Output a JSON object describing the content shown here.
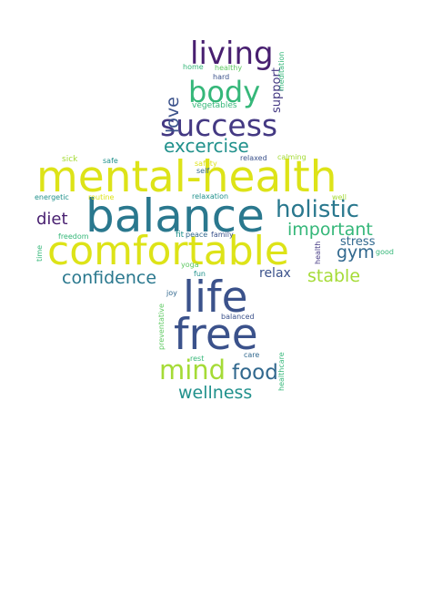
{
  "palette": {
    "yellow": "#dde318",
    "lime": "#a5db36",
    "green": "#5ec962",
    "seagreen": "#35b779",
    "teal": "#21918c",
    "bluegreen": "#2a788e",
    "blue": "#31688e",
    "indigo": "#3b528b",
    "purple": "#443983",
    "darkpurple": "#481f70",
    "deep": "#440154"
  },
  "words": [
    {
      "text": "mental-health",
      "color": "yellow"
    },
    {
      "text": "balance",
      "color": "bluegreen"
    },
    {
      "text": "comfortable",
      "color": "yellow"
    },
    {
      "text": "life",
      "color": "indigo"
    },
    {
      "text": "free",
      "color": "indigo"
    },
    {
      "text": "success",
      "color": "purple"
    },
    {
      "text": "living",
      "color": "darkpurple"
    },
    {
      "text": "body",
      "color": "seagreen"
    },
    {
      "text": "holistic",
      "color": "bluegreen"
    },
    {
      "text": "mind",
      "color": "lime"
    },
    {
      "text": "food",
      "color": "blue"
    },
    {
      "text": "wellness",
      "color": "teal"
    },
    {
      "text": "excercise",
      "color": "teal"
    },
    {
      "text": "confidence",
      "color": "bluegreen"
    },
    {
      "text": "important",
      "color": "seagreen"
    },
    {
      "text": "stable",
      "color": "lime"
    },
    {
      "text": "gym",
      "color": "blue"
    },
    {
      "text": "diet",
      "color": "darkpurple"
    },
    {
      "text": "love",
      "color": "indigo"
    },
    {
      "text": "stress",
      "color": "blue"
    },
    {
      "text": "relax",
      "color": "indigo"
    },
    {
      "text": "support",
      "color": "purple"
    },
    {
      "text": "meditation",
      "color": "seagreen"
    },
    {
      "text": "home",
      "color": "seagreen"
    },
    {
      "text": "healthy",
      "color": "green"
    },
    {
      "text": "hard",
      "color": "indigo"
    },
    {
      "text": "vegetables",
      "color": "seagreen"
    },
    {
      "text": "sick",
      "color": "lime"
    },
    {
      "text": "safe",
      "color": "teal"
    },
    {
      "text": "calming",
      "color": "lime"
    },
    {
      "text": "safety",
      "color": "yellow"
    },
    {
      "text": "self",
      "color": "blue"
    },
    {
      "text": "energetic",
      "color": "teal"
    },
    {
      "text": "routine",
      "color": "yellow"
    },
    {
      "text": "relaxation",
      "color": "teal"
    },
    {
      "text": "well",
      "color": "lime"
    },
    {
      "text": "freedom",
      "color": "seagreen"
    },
    {
      "text": "fit",
      "color": "teal"
    },
    {
      "text": "peace",
      "color": "blue"
    },
    {
      "text": "family",
      "color": "indigo"
    },
    {
      "text": "relaxed",
      "color": "indigo"
    },
    {
      "text": "health",
      "color": "purple"
    },
    {
      "text": "good",
      "color": "seagreen"
    },
    {
      "text": "time",
      "color": "seagreen"
    },
    {
      "text": "yoga",
      "color": "green"
    },
    {
      "text": "fun",
      "color": "teal"
    },
    {
      "text": "joy",
      "color": "blue"
    },
    {
      "text": "preventative",
      "color": "green"
    },
    {
      "text": "balanced",
      "color": "indigo"
    },
    {
      "text": "rest",
      "color": "seagreen"
    },
    {
      "text": "care",
      "color": "blue"
    },
    {
      "text": "healthcare",
      "color": "seagreen"
    }
  ]
}
